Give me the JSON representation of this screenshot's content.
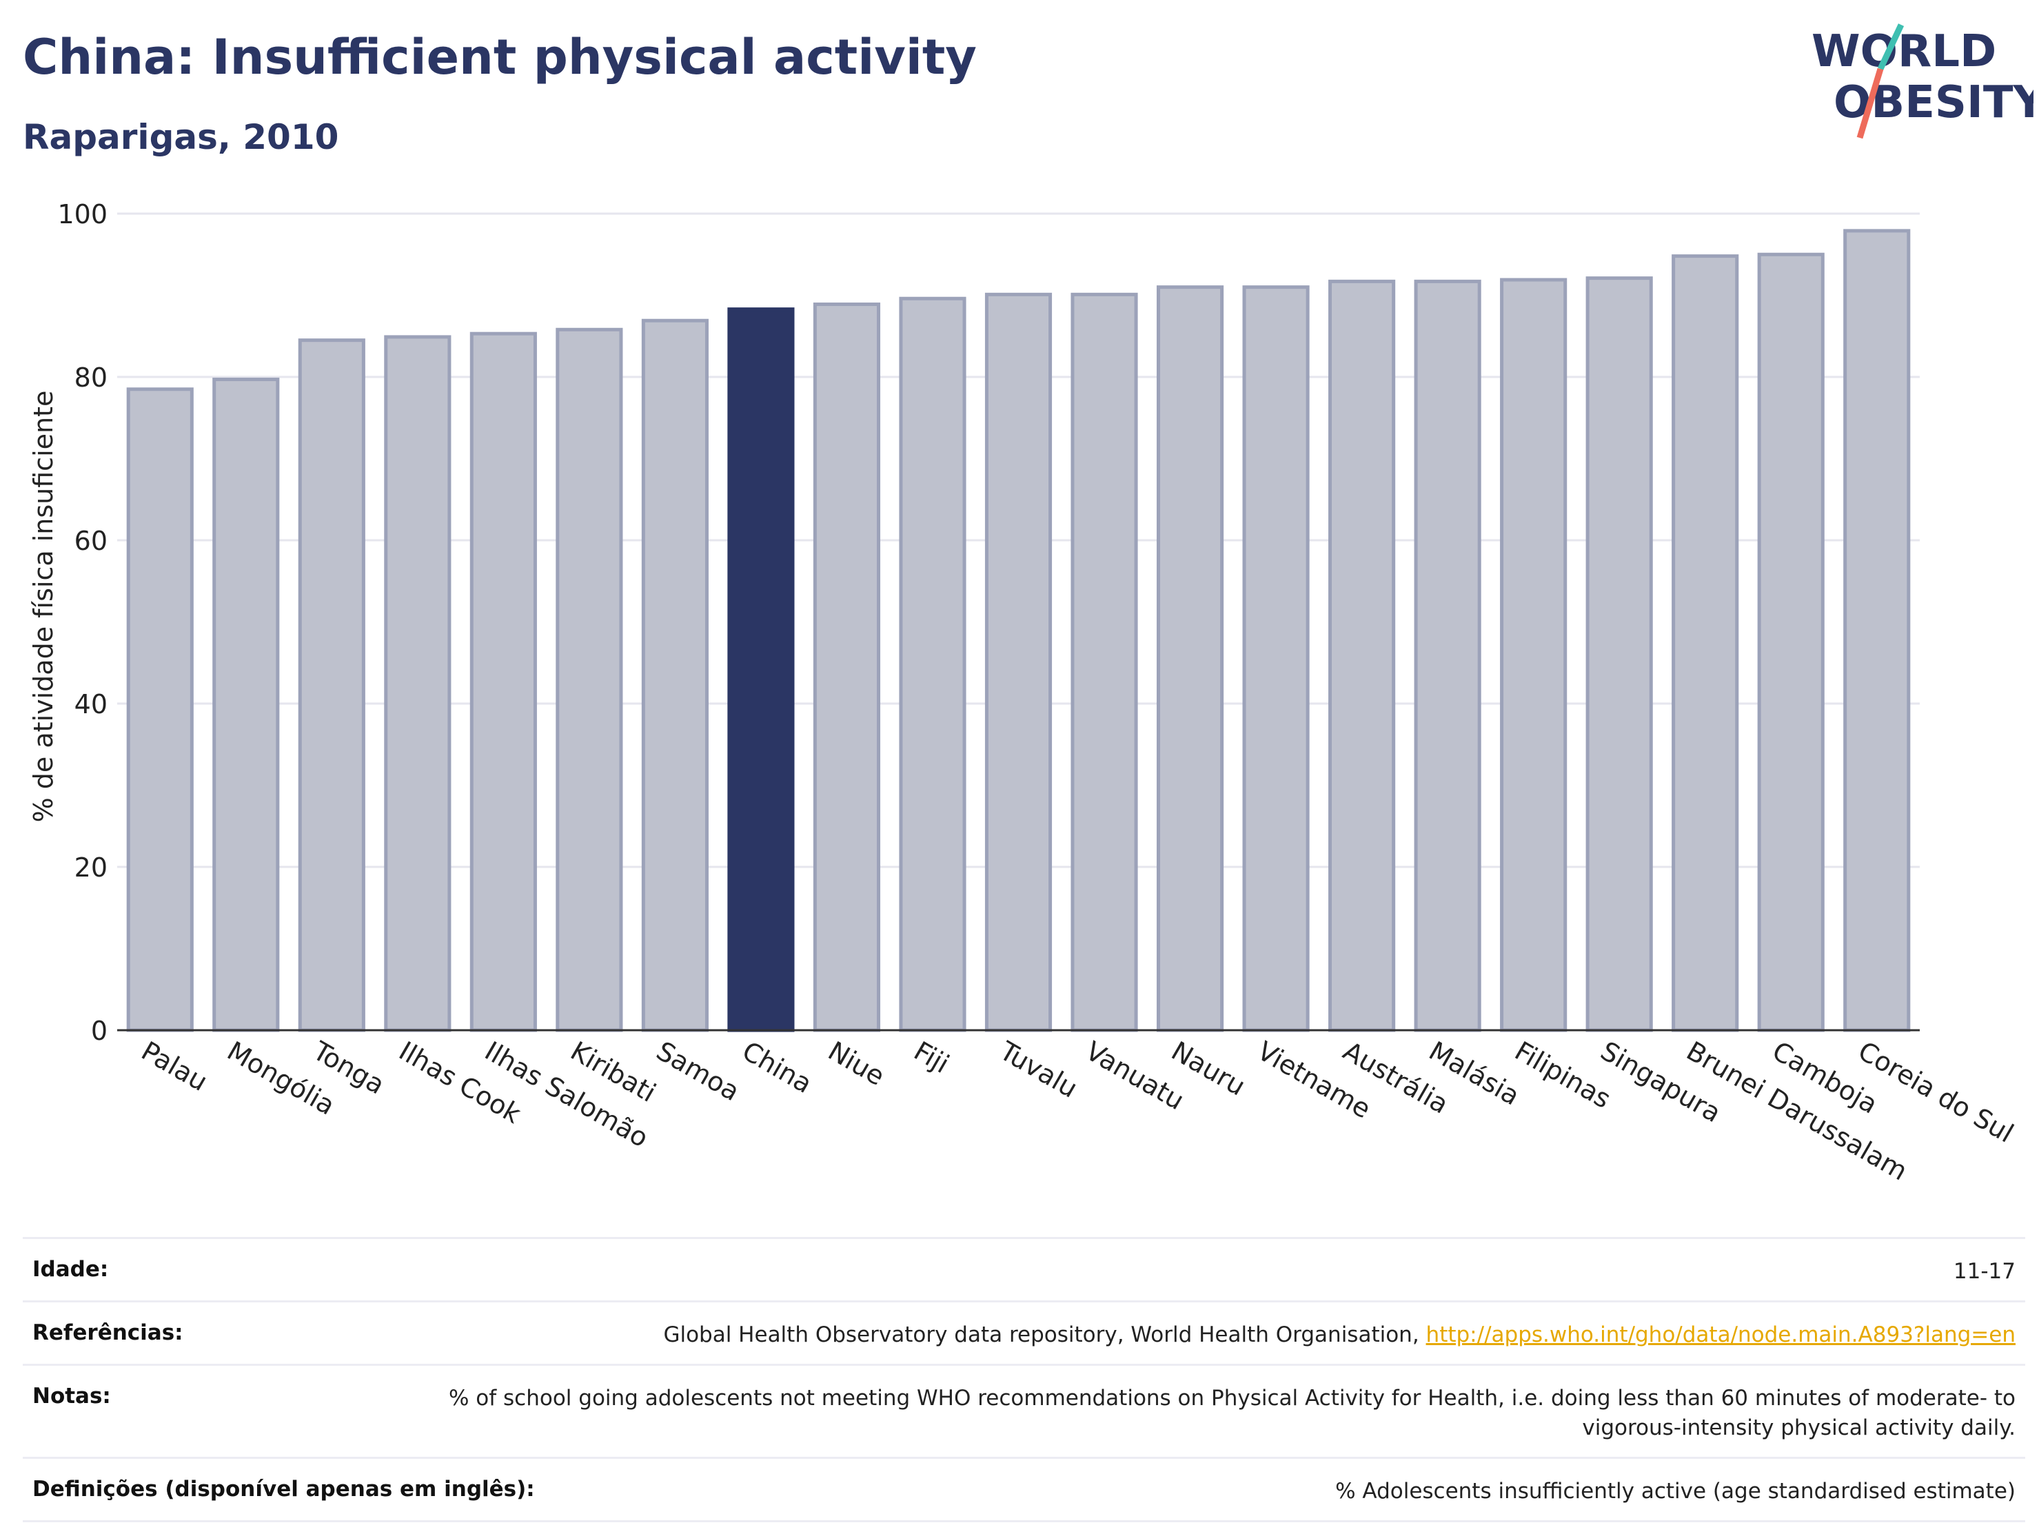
{
  "header": {
    "title": "China: Insufficient physical activity",
    "subtitle": "Raparigas, 2010",
    "logo_line1": "WORLD",
    "logo_line2": "OBESITY"
  },
  "chart_data": {
    "type": "bar",
    "ylabel": "% de atividade física insuficiente",
    "xlabel": "",
    "ylim": [
      0,
      100
    ],
    "yticks": [
      0,
      20,
      40,
      60,
      80,
      100
    ],
    "grid": true,
    "categories": [
      "Palau",
      "Mongólia",
      "Tonga",
      "Ilhas Cook",
      "Ilhas Salomão",
      "Kiribati",
      "Samoa",
      "China",
      "Niue",
      "Fiji",
      "Tuvalu",
      "Vanuatu",
      "Nauru",
      "Vietname",
      "Austrália",
      "Malásia",
      "Filipinas",
      "Singapura",
      "Brunei Darussalam",
      "Camboja",
      "Coreia do Sul"
    ],
    "values": [
      78.5,
      79.7,
      84.5,
      84.9,
      85.3,
      85.8,
      86.9,
      88.3,
      88.9,
      89.6,
      90.1,
      90.1,
      91.0,
      91.0,
      91.7,
      91.7,
      91.9,
      92.1,
      94.8,
      95.0,
      97.9
    ],
    "highlight": "China",
    "colors": {
      "bar": "#bec1cd",
      "bar_edge": "#9ca2b9",
      "highlight": "#2b3664",
      "grid": "#e6e6ee",
      "axis": "#333333"
    }
  },
  "meta": {
    "age_label": "Idade:",
    "age_value": "11-17",
    "refs_label": "Referências:",
    "refs_text": "Global Health Observatory data repository, World Health Organisation, ",
    "refs_link": "http://apps.who.int/gho/data/node.main.A893?lang=en",
    "notes_label": "Notas:",
    "notes_text": "% of school going adolescents not meeting WHO recommendations on Physical Activity for Health, i.e. doing less than 60 minutes of moderate- to vigorous-intensity physical activity daily.",
    "defs_label": "Definições (disponível apenas em inglês):",
    "defs_text": "% Adolescents insufficiently active (age standardised estimate)"
  }
}
